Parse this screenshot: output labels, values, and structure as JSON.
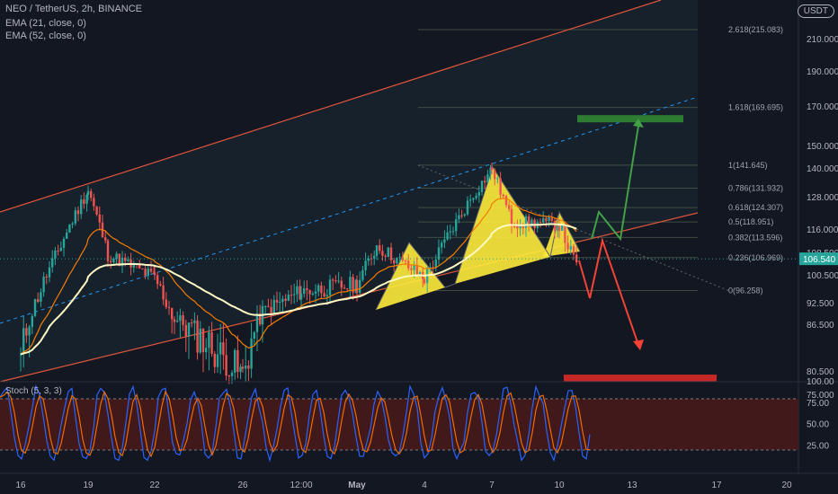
{
  "header": {
    "symbol_line": "NEO / TetherUS, 2h, BINANCE",
    "ema21": "EMA (21, close, 0)",
    "ema52": "EMA (52, close, 0)",
    "currency_badge": "USDT"
  },
  "stoch_label": "Stoch (5, 3, 3)",
  "colors": {
    "bg": "#131722",
    "up": "#26a69a",
    "down": "#ef5350",
    "ema21": "#f57c00",
    "ema52": "#fff9c4",
    "channel": "#e0553b",
    "midline": "#2196f3",
    "pattern": "#ffeb3b",
    "target_up": "#2e7d32",
    "target_down": "#c62828",
    "arrow_up": "#43a047",
    "arrow_down": "#f44336",
    "stoch_k": "#2962ff",
    "stoch_d": "#ef6c00",
    "stoch_band": "#4a1a1a"
  },
  "chart_data": [
    {
      "type": "candlestick",
      "title": "NEO / TetherUS, 2h, BINANCE",
      "x_ticks": [
        "16",
        "19",
        "22",
        "26",
        "12:00",
        "May",
        "4",
        "7",
        "10",
        "13",
        "17",
        "20"
      ],
      "y_ticks": [
        75.0,
        80.5,
        86.5,
        92.5,
        100.5,
        108.5,
        116.0,
        128.0,
        140.0,
        150.0,
        170.0,
        190.0,
        210.0
      ],
      "y_tick_labels": [
        "75.000",
        "80.500",
        "86.500",
        "92.500",
        "100.500",
        "108.500",
        "116.000",
        "128.000",
        "140.000",
        "150.000",
        "170.000",
        "190.000",
        "210.000"
      ],
      "last_price": 106.54,
      "last_price_label": "106.540",
      "price_path_anchors": [
        {
          "x": "16",
          "y": 82
        },
        {
          "x": "19",
          "y": 131
        },
        {
          "x": "19",
          "y": 108
        },
        {
          "x": "22",
          "y": 100
        },
        {
          "x": "22",
          "y": 88
        },
        {
          "x": "26",
          "y": 80
        },
        {
          "x": "26",
          "y": 90
        },
        {
          "x": "12:00",
          "y": 96
        },
        {
          "x": "May",
          "y": 98
        },
        {
          "x": "May",
          "y": 111
        },
        {
          "x": "4",
          "y": 100
        },
        {
          "x": "7",
          "y": 140
        },
        {
          "x": "7",
          "y": 119
        },
        {
          "x": "10",
          "y": 118
        },
        {
          "x": "10",
          "y": 102
        }
      ],
      "fibonacci": [
        {
          "level": "0",
          "price": 96.258,
          "label": "0(96.258)"
        },
        {
          "level": "0.236",
          "price": 106.969,
          "label": "0.236(106.969)"
        },
        {
          "level": "0.382",
          "price": 113.596,
          "label": "0.382(113.596)"
        },
        {
          "level": "0.5",
          "price": 118.951,
          "label": "0.5(118.951)"
        },
        {
          "level": "0.618",
          "price": 124.307,
          "label": "0.618(124.307)"
        },
        {
          "level": "0.786",
          "price": 131.932,
          "label": "0.786(131.932)"
        },
        {
          "level": "1",
          "price": 141.645,
          "label": "1(141.645)"
        },
        {
          "level": "1.618",
          "price": 169.695,
          "label": "1.618(169.695)"
        },
        {
          "level": "2.618",
          "price": 215.083,
          "label": "2.618(215.083)"
        }
      ],
      "series": [
        {
          "name": "EMA (21, close, 0)",
          "kind": "ema",
          "period": 21
        },
        {
          "name": "EMA (52, close, 0)",
          "kind": "ema",
          "period": 52
        }
      ],
      "targets": [
        {
          "direction": "up",
          "price": 164
        },
        {
          "direction": "down",
          "price": 79
        }
      ]
    },
    {
      "type": "line",
      "title": "Stoch (5, 3, 3)",
      "y_ticks": [
        25.0,
        50.0,
        75.0,
        100.0
      ],
      "y_tick_labels": [
        "25.00",
        "50.00",
        "75.00",
        "100.00"
      ],
      "band": [
        20,
        80
      ],
      "series": [
        {
          "kind": "%K"
        },
        {
          "kind": "%D"
        }
      ]
    }
  ]
}
